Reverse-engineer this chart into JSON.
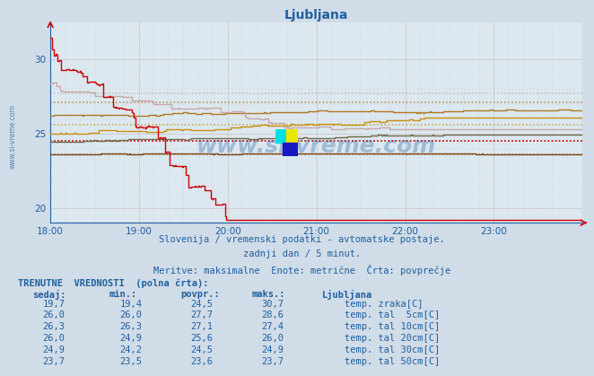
{
  "title": "Ljubljana",
  "bg_color": "#d0dce8",
  "plot_bg_color": "#dce8f0",
  "x_tick_labels": [
    "18:00",
    "19:00",
    "20:00",
    "21:00",
    "22:00",
    "23:00"
  ],
  "ylim": [
    19.0,
    32.5
  ],
  "y_ticks": [
    20,
    25,
    30
  ],
  "subtitle1": "Slovenija / vremenski podatki - avtomatske postaje.",
  "subtitle2": "zadnji dan / 5 minut.",
  "subtitle3": "Meritve: maksimalne  Enote: metrične  Črta: povprečje",
  "watermark": "www.si-vreme.com",
  "text_color": "#2060a0",
  "series": {
    "temp_zraka": {
      "color": "#cc0000",
      "avg": 24.5,
      "label": "temp. zraka[C]",
      "swatch": "#cc0000"
    },
    "tal_5cm": {
      "color": "#c8a8a8",
      "avg": 27.7,
      "label": "temp. tal  5cm[C]",
      "swatch": "#c8a8a8"
    },
    "tal_10cm": {
      "color": "#b07820",
      "avg": 27.1,
      "label": "temp. tal 10cm[C]",
      "swatch": "#b07820"
    },
    "tal_20cm": {
      "color": "#c89010",
      "avg": 25.6,
      "label": "temp. tal 20cm[C]",
      "swatch": "#c89010"
    },
    "tal_30cm": {
      "color": "#706848",
      "avg": 24.5,
      "label": "temp. tal 30cm[C]",
      "swatch": "#706848"
    },
    "tal_50cm": {
      "color": "#804818",
      "avg": 23.6,
      "label": "temp. tal 50cm[C]",
      "swatch": "#804818"
    }
  },
  "avg_dot_colors": {
    "temp_zraka": "#cc0000",
    "tal_5cm": "#c8a8a8",
    "tal_10cm": "#b07820",
    "tal_20cm": "#c89010",
    "tal_30cm": "#cc0000",
    "tal_50cm": "#906030"
  },
  "table": {
    "title": "TRENUTNE  VREDNOSTI  (polna črta):",
    "cols": [
      "sedaj:",
      "min.:",
      "povpr.:",
      "maks.:",
      "Ljubljana"
    ],
    "rows": [
      {
        "sedaj": "19,7",
        "min": "19,4",
        "povpr": "24,5",
        "maks": "30,7",
        "color": "#cc0000",
        "label": "temp. zraka[C]"
      },
      {
        "sedaj": "26,0",
        "min": "26,0",
        "povpr": "27,7",
        "maks": "28,6",
        "color": "#c8a8a8",
        "label": "temp. tal  5cm[C]"
      },
      {
        "sedaj": "26,3",
        "min": "26,3",
        "povpr": "27,1",
        "maks": "27,4",
        "color": "#b07820",
        "label": "temp. tal 10cm[C]"
      },
      {
        "sedaj": "26,0",
        "min": "24,9",
        "povpr": "25,6",
        "maks": "26,0",
        "color": "#c89010",
        "label": "temp. tal 20cm[C]"
      },
      {
        "sedaj": "24,9",
        "min": "24,2",
        "povpr": "24,5",
        "maks": "24,9",
        "color": "#706848",
        "label": "temp. tal 30cm[C]"
      },
      {
        "sedaj": "23,7",
        "min": "23,5",
        "povpr": "23,6",
        "maks": "23,7",
        "color": "#804818",
        "label": "temp. tal 50cm[C]"
      }
    ]
  },
  "logo": {
    "cyan": "#00e0e0",
    "yellow": "#e8e800",
    "blue": "#1818c0"
  }
}
